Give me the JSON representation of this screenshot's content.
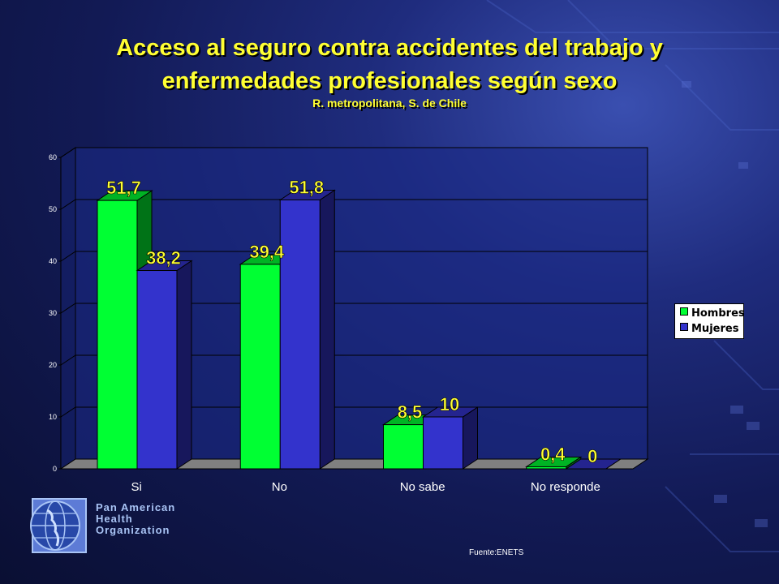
{
  "title": {
    "line1": "Acceso al seguro contra accidentes del trabajo y",
    "line2": "enfermedades profesionales según sexo",
    "subtitle": "R. metropolitana, S. de Chile"
  },
  "chart_data": {
    "type": "bar",
    "categories": [
      "Si",
      "No",
      "No sabe",
      "No responde"
    ],
    "series": [
      {
        "name": "Hombres",
        "values": [
          51.7,
          39.4,
          8.5,
          0.4
        ],
        "labels": [
          "51,7",
          "39,4",
          "8,5",
          "0,4"
        ],
        "color": "#00ff33"
      },
      {
        "name": "Mujeres",
        "values": [
          38.2,
          51.8,
          10,
          0
        ],
        "labels": [
          "38,2",
          "51,8",
          "10",
          "0"
        ],
        "color": "#3333cc"
      }
    ],
    "ylim": [
      0,
      60
    ],
    "yticks": [
      0,
      10,
      20,
      30,
      40,
      50,
      60
    ],
    "grid": true,
    "legend_position": "right",
    "label_color": "#ffff33",
    "floor_color": "#808080"
  },
  "legend": {
    "items": [
      "Hombres",
      "Mujeres"
    ]
  },
  "footer": {
    "source": "Fuente:ENETS",
    "org_line1": "Pan American",
    "org_line2": "Health",
    "org_line3": "Organization"
  },
  "icons": {
    "logo": "globe-logo-icon"
  }
}
